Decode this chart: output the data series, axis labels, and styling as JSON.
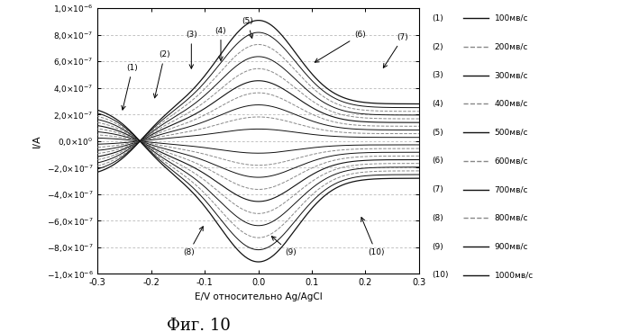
{
  "title": "Фиг. 10",
  "xlabel": "E/V относительно Ag/AgCl",
  "ylabel": "I/A",
  "xlim": [
    -0.3,
    0.3
  ],
  "ylim": [
    -1e-06,
    1e-06
  ],
  "scan_rates": [
    100,
    200,
    300,
    400,
    500,
    600,
    700,
    800,
    900,
    1000
  ],
  "legend_labels": [
    "(1)",
    "(2)",
    "(3)",
    "(4)",
    "(5)",
    "(6)",
    "(7)",
    "(8)",
    "(9)",
    "(10)"
  ],
  "legend_speeds": [
    "100мв/с",
    "200мв/с",
    "300мв/с",
    "400мв/с",
    "500мв/с",
    "600мв/с",
    "700мв/с",
    "800мв/с",
    "900мв/с",
    "1000мв/с"
  ],
  "dashed_levels": [
    8e-07,
    6e-07,
    4e-07,
    2e-07,
    0.0,
    -2e-07,
    -4e-07,
    -6e-07,
    -8e-07
  ],
  "ytick_labels": [
    "1,0×10⁻⁶",
    "8,0×10⁻⁷",
    "6,0×10⁻⁷",
    "4,0×10⁻⁷",
    "2,0×10⁻⁷",
    "0,0×10⁰",
    "−2,0×10⁻⁷",
    "−4,0×10⁻⁷",
    "−6,0×10⁻⁷",
    "−8,0×10⁻⁷",
    "−1,0×10⁻⁶"
  ],
  "background_color": "#ffffff",
  "dashed_color": "#aaaaaa"
}
